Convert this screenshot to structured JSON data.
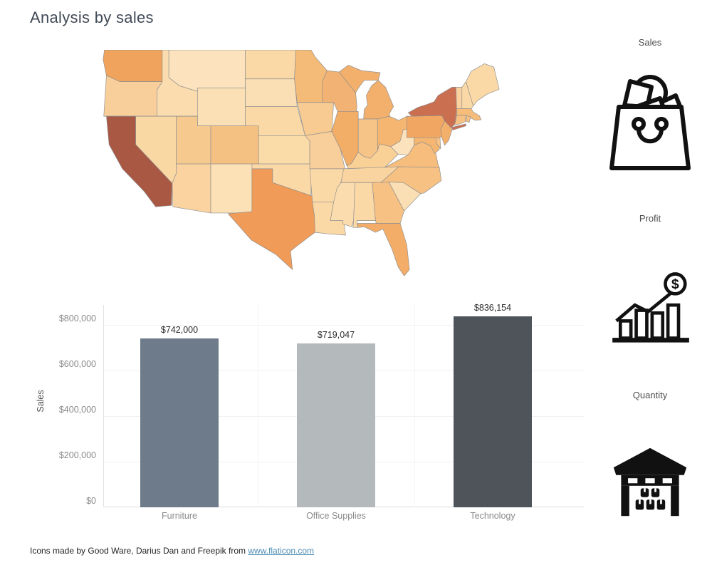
{
  "title": "Analysis by sales",
  "right_panel": {
    "items": [
      {
        "label": "Sales",
        "icon": "shopping-bag-icon"
      },
      {
        "label": "Profit",
        "icon": "profit-growth-icon"
      },
      {
        "label": "Quantity",
        "icon": "warehouse-icon"
      }
    ]
  },
  "footer": {
    "text": "Icons made by Good Ware, Darius Dan and Freepik from ",
    "link_text": "www.flaticon.com"
  },
  "chart_data": [
    {
      "type": "heatmap",
      "subtype": "choropleth-map",
      "title": "Sales by state (United States)",
      "region": "contiguous United States",
      "color_scale_low": "#fce3bd",
      "color_scale_high": "#a85843",
      "states": [
        {
          "id": "WA",
          "name": "Washington",
          "color": "#efa35c"
        },
        {
          "id": "OR",
          "name": "Oregon",
          "color": "#f8cf9b"
        },
        {
          "id": "CA",
          "name": "California",
          "color": "#a85843"
        },
        {
          "id": "NV",
          "name": "Nevada",
          "color": "#fad8a4"
        },
        {
          "id": "ID",
          "name": "Idaho",
          "color": "#fbdcae"
        },
        {
          "id": "MT",
          "name": "Montana",
          "color": "#fce3bd"
        },
        {
          "id": "WY",
          "name": "Wyoming",
          "color": "#fbe0b6"
        },
        {
          "id": "UT",
          "name": "Utah",
          "color": "#f6c98f"
        },
        {
          "id": "CO",
          "name": "Colorado",
          "color": "#f4c183"
        },
        {
          "id": "AZ",
          "name": "Arizona",
          "color": "#fad3a0"
        },
        {
          "id": "NM",
          "name": "New Mexico",
          "color": "#fce0b6"
        },
        {
          "id": "ND",
          "name": "North Dakota",
          "color": "#fbd9a7"
        },
        {
          "id": "SD",
          "name": "South Dakota",
          "color": "#fbdfb4"
        },
        {
          "id": "NE",
          "name": "Nebraska",
          "color": "#fbd9a7"
        },
        {
          "id": "KS",
          "name": "Kansas",
          "color": "#fadca9"
        },
        {
          "id": "OK",
          "name": "Oklahoma",
          "color": "#fbd9a7"
        },
        {
          "id": "TX",
          "name": "Texas",
          "color": "#f09b57"
        },
        {
          "id": "MN",
          "name": "Minnesota",
          "color": "#f4ba77"
        },
        {
          "id": "IA",
          "name": "Iowa",
          "color": "#f7cb92"
        },
        {
          "id": "MO",
          "name": "Missouri",
          "color": "#f8cf9a"
        },
        {
          "id": "AR",
          "name": "Arkansas",
          "color": "#fbd9a7"
        },
        {
          "id": "LA",
          "name": "Louisiana",
          "color": "#fbd9a7"
        },
        {
          "id": "WI",
          "name": "Wisconsin",
          "color": "#f2b273"
        },
        {
          "id": "MI",
          "name": "Michigan",
          "color": "#f2b06c"
        },
        {
          "id": "IL",
          "name": "Illinois",
          "color": "#f2ad67"
        },
        {
          "id": "IN",
          "name": "Indiana",
          "color": "#f7c488"
        },
        {
          "id": "OH",
          "name": "Ohio",
          "color": "#f4b670"
        },
        {
          "id": "KY",
          "name": "Kentucky",
          "color": "#f9d096"
        },
        {
          "id": "TN",
          "name": "Tennessee",
          "color": "#f9d3a0"
        },
        {
          "id": "MS",
          "name": "Mississippi",
          "color": "#fbdcae"
        },
        {
          "id": "AL",
          "name": "Alabama",
          "color": "#fbd9a7"
        },
        {
          "id": "GA",
          "name": "Georgia",
          "color": "#f6c183"
        },
        {
          "id": "FL",
          "name": "Florida",
          "color": "#f3ad68"
        },
        {
          "id": "SC",
          "name": "South Carolina",
          "color": "#fbdfb4"
        },
        {
          "id": "NC",
          "name": "North Carolina",
          "color": "#f6c183"
        },
        {
          "id": "VA",
          "name": "Virginia",
          "color": "#f6bd7d"
        },
        {
          "id": "WV",
          "name": "West Virginia",
          "color": "#fce3bd"
        },
        {
          "id": "MD",
          "name": "Maryland",
          "color": "#f4b670"
        },
        {
          "id": "DE",
          "name": "Delaware",
          "color": "#f6c183"
        },
        {
          "id": "PA",
          "name": "Pennsylvania",
          "color": "#f1a761"
        },
        {
          "id": "NJ",
          "name": "New Jersey",
          "color": "#f3b06b"
        },
        {
          "id": "NY",
          "name": "New York",
          "color": "#cb6f51"
        },
        {
          "id": "VT",
          "name": "Vermont",
          "color": "#fad2a0"
        },
        {
          "id": "NH",
          "name": "New Hampshire",
          "color": "#fbd9a7"
        },
        {
          "id": "ME",
          "name": "Maine",
          "color": "#fbd9a7"
        },
        {
          "id": "MA",
          "name": "Massachusetts",
          "color": "#f5bc7a"
        },
        {
          "id": "RI",
          "name": "Rhode Island",
          "color": "#f6c183"
        },
        {
          "id": "CT",
          "name": "Connecticut",
          "color": "#f6c183"
        }
      ]
    },
    {
      "type": "bar",
      "title": "",
      "categories": [
        "Furniture",
        "Office Supplies",
        "Technology"
      ],
      "values": [
        742000,
        719047,
        836154
      ],
      "value_labels": [
        "$742,000",
        "$719,047",
        "$836,154"
      ],
      "bar_colors": [
        "#6e7b8a",
        "#b4b9bc",
        "#4e545a"
      ],
      "xlabel": "",
      "ylabel": "Sales",
      "ylim": [
        0,
        880000
      ],
      "ytick_values": [
        0,
        200000,
        400000,
        600000,
        800000
      ],
      "yticks": [
        "$0",
        "$200,000",
        "$400,000",
        "$600,000",
        "$800,000"
      ],
      "grid": true,
      "legend": "none"
    }
  ]
}
